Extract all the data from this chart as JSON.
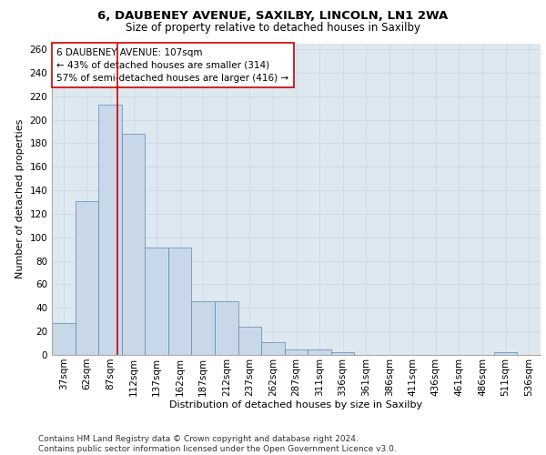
{
  "title1": "6, DAUBENEY AVENUE, SAXILBY, LINCOLN, LN1 2WA",
  "title2": "Size of property relative to detached houses in Saxilby",
  "xlabel": "Distribution of detached houses by size in Saxilby",
  "ylabel": "Number of detached properties",
  "bar_labels": [
    "37sqm",
    "62sqm",
    "87sqm",
    "112sqm",
    "137sqm",
    "162sqm",
    "187sqm",
    "212sqm",
    "237sqm",
    "262sqm",
    "287sqm",
    "311sqm",
    "336sqm",
    "361sqm",
    "386sqm",
    "411sqm",
    "436sqm",
    "461sqm",
    "486sqm",
    "511sqm",
    "536sqm"
  ],
  "bar_values": [
    27,
    131,
    213,
    188,
    91,
    91,
    46,
    46,
    24,
    11,
    5,
    5,
    2,
    0,
    0,
    0,
    0,
    0,
    0,
    2,
    0
  ],
  "bar_color": "#c8d8e8",
  "bar_edge_color": "#5a8ab0",
  "grid_color": "#d0d8e8",
  "background_color": "#dde8f0",
  "annotation_box_text": "6 DAUBENEY AVENUE: 107sqm\n← 43% of detached houses are smaller (314)\n57% of semi-detached houses are larger (416) →",
  "annotation_box_color": "#ffffff",
  "annotation_box_edge_color": "#cc0000",
  "vline_color": "#cc0000",
  "ylim": [
    0,
    265
  ],
  "yticks": [
    0,
    20,
    40,
    60,
    80,
    100,
    120,
    140,
    160,
    180,
    200,
    220,
    240,
    260
  ],
  "footer_text": "Contains HM Land Registry data © Crown copyright and database right 2024.\nContains public sector information licensed under the Open Government Licence v3.0.",
  "title1_fontsize": 9.5,
  "title2_fontsize": 8.5,
  "xlabel_fontsize": 8,
  "ylabel_fontsize": 8,
  "tick_fontsize": 7.5,
  "annotation_fontsize": 7.5,
  "footer_fontsize": 6.5
}
